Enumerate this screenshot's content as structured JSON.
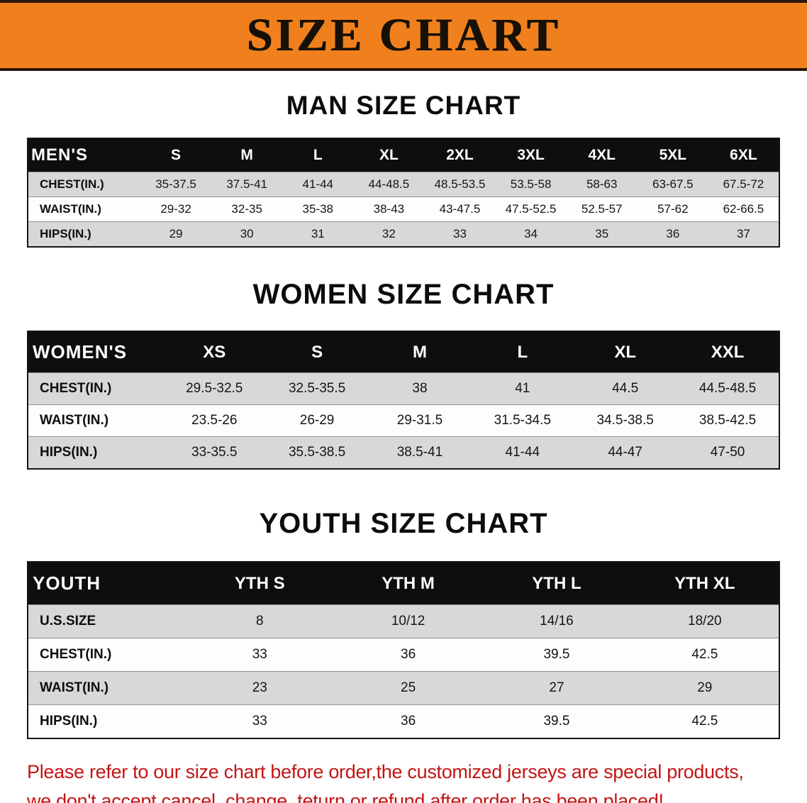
{
  "banner": {
    "title": "SIZE CHART"
  },
  "sections": [
    {
      "heading": "MAN SIZE CHART",
      "table": {
        "name": "mens",
        "columns": [
          "MEN'S",
          "S",
          "M",
          "L",
          "XL",
          "2XL",
          "3XL",
          "4XL",
          "5XL",
          "6XL"
        ],
        "rows": [
          {
            "label": "CHEST(IN.)",
            "values": [
              "35-37.5",
              "37.5-41",
              "41-44",
              "44-48.5",
              "48.5-53.5",
              "53.5-58",
              "58-63",
              "63-67.5",
              "67.5-72"
            ]
          },
          {
            "label": "WAIST(IN.)",
            "values": [
              "29-32",
              "32-35",
              "35-38",
              "38-43",
              "43-47.5",
              "47.5-52.5",
              "52.5-57",
              "57-62",
              "62-66.5"
            ]
          },
          {
            "label": "HIPS(IN.)",
            "values": [
              "29",
              "30",
              "31",
              "32",
              "33",
              "34",
              "35",
              "36",
              "37"
            ]
          }
        ]
      }
    },
    {
      "heading": "WOMEN SIZE CHART",
      "table": {
        "name": "womens",
        "columns": [
          "WOMEN'S",
          "XS",
          "S",
          "M",
          "L",
          "XL",
          "XXL"
        ],
        "rows": [
          {
            "label": "CHEST(IN.)",
            "values": [
              "29.5-32.5",
              "32.5-35.5",
              "38",
              "41",
              "44.5",
              "44.5-48.5"
            ]
          },
          {
            "label": "WAIST(IN.)",
            "values": [
              "23.5-26",
              "26-29",
              "29-31.5",
              "31.5-34.5",
              "34.5-38.5",
              "38.5-42.5"
            ]
          },
          {
            "label": "HIPS(IN.)",
            "values": [
              "33-35.5",
              "35.5-38.5",
              "38.5-41",
              "41-44",
              "44-47",
              "47-50"
            ]
          }
        ]
      }
    },
    {
      "heading": "YOUTH SIZE CHART",
      "table": {
        "name": "youth",
        "columns": [
          "YOUTH",
          "YTH S",
          "YTH M",
          "YTH L",
          "YTH XL"
        ],
        "rows": [
          {
            "label": "U.S.SIZE",
            "values": [
              "8",
              "10/12",
              "14/16",
              "18/20"
            ]
          },
          {
            "label": "CHEST(IN.)",
            "values": [
              "33",
              "36",
              "39.5",
              "42.5"
            ]
          },
          {
            "label": "WAIST(IN.)",
            "values": [
              "23",
              "25",
              "27",
              "29"
            ]
          },
          {
            "label": "HIPS(IN.)",
            "values": [
              "33",
              "36",
              "39.5",
              "42.5"
            ]
          }
        ]
      }
    }
  ],
  "footer": {
    "lines": [
      "Please refer to our size chart before order,the customized jerseys are special products,",
      "we don't accept cancel, change, teturn or refund after order has been placed!"
    ]
  },
  "colors": {
    "banner_bg": "#f0801d",
    "banner_border": "#2a180a",
    "header_row_bg": "#0e0e0e",
    "row_stripe": "#d8d8d8",
    "footer_text": "#c41414"
  }
}
